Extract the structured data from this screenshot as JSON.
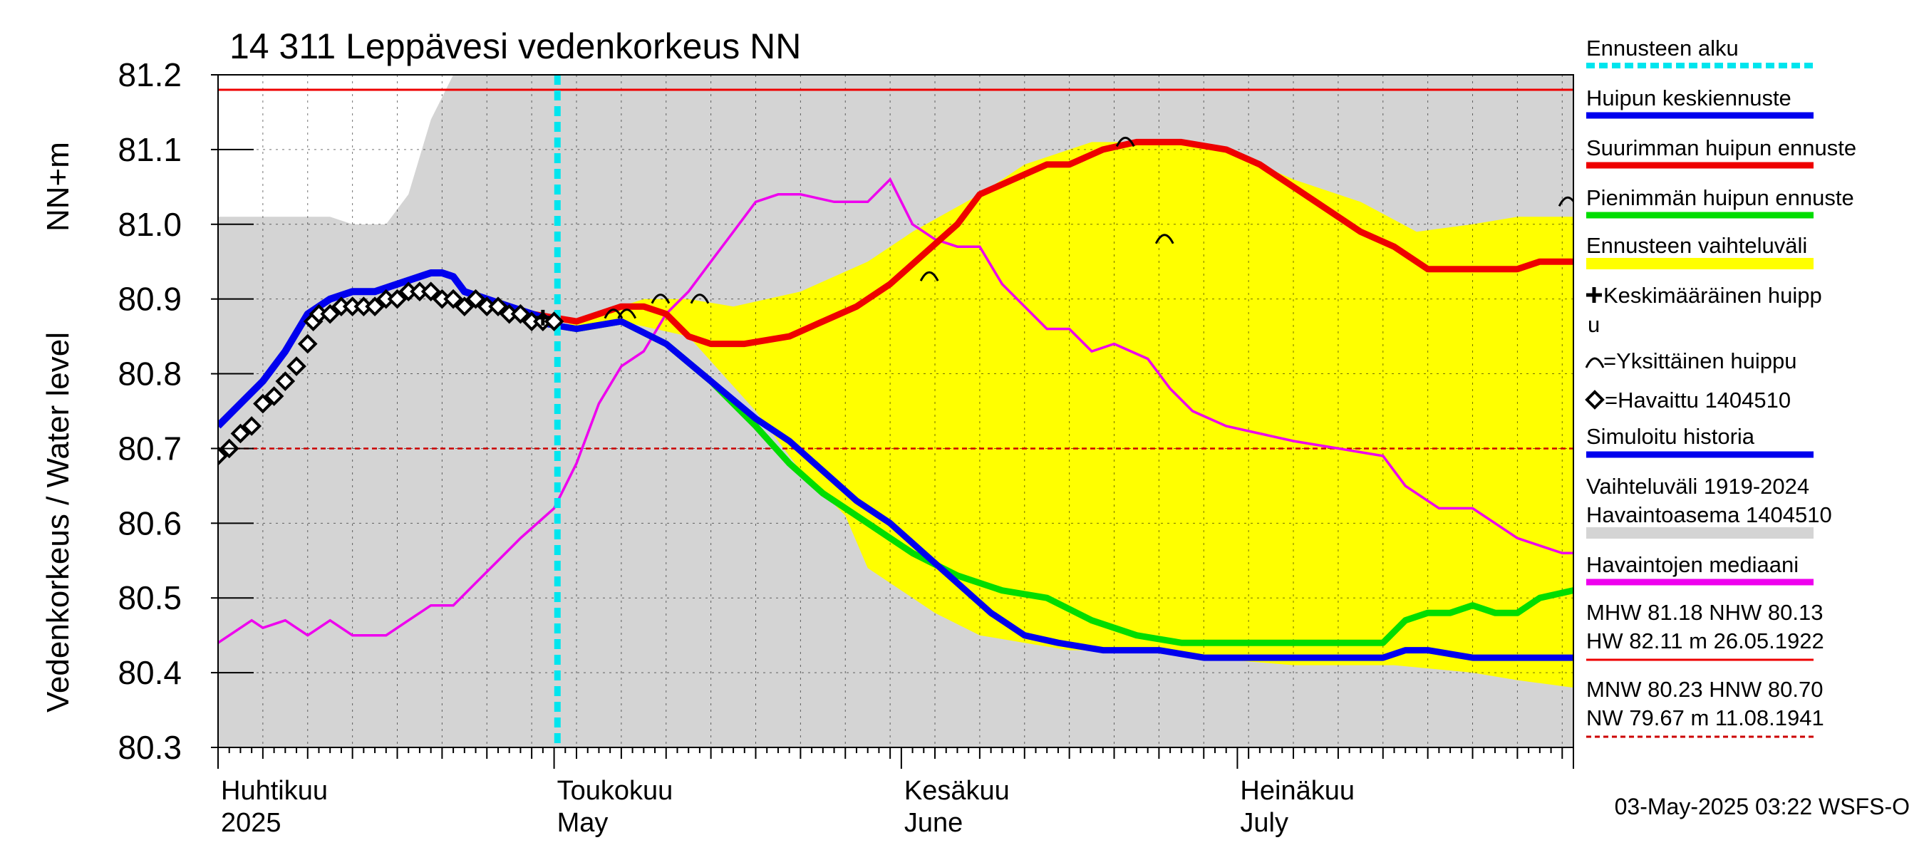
{
  "chart_data": {
    "type": "line",
    "title": "14 311 Leppävesi vedenkorkeus NN",
    "ylabel": "Vedenkorkeus / Water level",
    "yunit": "NN+m",
    "ylim": [
      80.3,
      81.2
    ],
    "yticks": [
      "80.3",
      "80.4",
      "80.5",
      "80.6",
      "80.7",
      "80.8",
      "80.9",
      "81.0",
      "81.1",
      "81.2"
    ],
    "x_range_days": [
      0,
      121
    ],
    "month_labels": [
      {
        "fi": "Huhtikuu",
        "en": "2025",
        "day": 0
      },
      {
        "fi": "Toukokuu",
        "en": "May",
        "day": 30
      },
      {
        "fi": "Kesäkuu",
        "en": "June",
        "day": 61
      },
      {
        "fi": "Heinäkuu",
        "en": "July",
        "day": 91
      }
    ],
    "month_ticks": [
      0,
      30,
      61,
      91,
      121
    ],
    "forecast_start_day": 30.3,
    "reference_lines": {
      "MHW": 81.18,
      "HNW": 80.7
    },
    "legend": [
      {
        "label": "Ennusteen alku",
        "color": "#00e5ee",
        "style": "dotted"
      },
      {
        "label": "Huipun keskiennuste",
        "color": "#0000ee",
        "style": "line"
      },
      {
        "label": "Suurimman huipun ennuste",
        "color": "#ee0000",
        "style": "line"
      },
      {
        "label": "Pienimmän huipun ennuste",
        "color": "#00dd00",
        "style": "line"
      },
      {
        "label": "Ennusteen vaihteluväli",
        "color": "#ffff00",
        "style": "band"
      },
      {
        "label": "=Keskimääräinen huippu",
        "color": "#000000",
        "style": "plus"
      },
      {
        "label": "=Yksittäinen huippu",
        "color": "#000000",
        "style": "arc"
      },
      {
        "label": "=Havaittu 1404510",
        "color": "#000000",
        "style": "diamond"
      },
      {
        "label": "Simuloitu historia",
        "color": "#0000ee",
        "style": "line"
      },
      {
        "label": "Vaihteluväli 1919-2024",
        "label2": "Havaintoasema 1404510",
        "color": "#d4d4d4",
        "style": "band"
      },
      {
        "label": "Havaintojen mediaani",
        "color": "#ee00ee",
        "style": "line"
      }
    ],
    "stats_high": {
      "line1": "MHW  81.18 NHW  80.13",
      "line2": "HW  82.11 m 26.05.1922"
    },
    "stats_low": {
      "line1": "MNW  80.23 HNW  80.70",
      "line2": "NW  79.67 m 11.08.1941"
    },
    "timestamp": "03-May-2025 03:22 WSFS-O",
    "series": {
      "history_band_upper": [
        [
          0,
          81.01
        ],
        [
          10,
          81.01
        ],
        [
          12,
          81.0
        ],
        [
          15,
          81.0
        ],
        [
          17,
          81.04
        ],
        [
          18,
          81.09
        ],
        [
          19,
          81.14
        ],
        [
          20,
          81.17
        ],
        [
          21,
          81.2
        ],
        [
          121,
          81.2
        ]
      ],
      "history_band_lower": [
        [
          0,
          80.3
        ],
        [
          121,
          80.3
        ]
      ],
      "forecast_band_upper": [
        [
          30,
          80.86
        ],
        [
          38,
          80.9
        ],
        [
          42,
          80.9
        ],
        [
          46,
          80.89
        ],
        [
          52,
          80.91
        ],
        [
          58,
          80.95
        ],
        [
          62,
          80.99
        ],
        [
          68,
          81.04
        ],
        [
          72,
          81.08
        ],
        [
          78,
          81.11
        ],
        [
          84,
          81.11
        ],
        [
          90,
          81.1
        ],
        [
          96,
          81.06
        ],
        [
          102,
          81.03
        ],
        [
          107,
          80.99
        ],
        [
          112,
          81.0
        ],
        [
          116,
          81.01
        ],
        [
          121,
          81.01
        ]
      ],
      "forecast_band_lower": [
        [
          30,
          80.86
        ],
        [
          36,
          80.87
        ],
        [
          42,
          80.85
        ],
        [
          48,
          80.75
        ],
        [
          52,
          80.67
        ],
        [
          56,
          80.61
        ],
        [
          58,
          80.54
        ],
        [
          61,
          80.51
        ],
        [
          64,
          80.48
        ],
        [
          68,
          80.45
        ],
        [
          72,
          80.44
        ],
        [
          76,
          80.43
        ],
        [
          82,
          80.43
        ],
        [
          88,
          80.42
        ],
        [
          96,
          80.41
        ],
        [
          105,
          80.41
        ],
        [
          112,
          80.4
        ],
        [
          116,
          80.39
        ],
        [
          121,
          80.38
        ]
      ],
      "median": [
        [
          0,
          80.44
        ],
        [
          3,
          80.47
        ],
        [
          4,
          80.46
        ],
        [
          6,
          80.47
        ],
        [
          8,
          80.45
        ],
        [
          10,
          80.47
        ],
        [
          12,
          80.45
        ],
        [
          15,
          80.45
        ],
        [
          17,
          80.47
        ],
        [
          19,
          80.49
        ],
        [
          21,
          80.49
        ],
        [
          23,
          80.52
        ],
        [
          25,
          80.55
        ],
        [
          27,
          80.58
        ],
        [
          30,
          80.62
        ],
        [
          32,
          80.68
        ],
        [
          34,
          80.76
        ],
        [
          36,
          80.81
        ],
        [
          38,
          80.83
        ],
        [
          40,
          80.88
        ],
        [
          42,
          80.91
        ],
        [
          44,
          80.95
        ],
        [
          46,
          80.99
        ],
        [
          48,
          81.03
        ],
        [
          50,
          81.04
        ],
        [
          52,
          81.04
        ],
        [
          55,
          81.03
        ],
        [
          58,
          81.03
        ],
        [
          60,
          81.06
        ],
        [
          62,
          81.0
        ],
        [
          64,
          80.98
        ],
        [
          66,
          80.97
        ],
        [
          68,
          80.97
        ],
        [
          70,
          80.92
        ],
        [
          72,
          80.89
        ],
        [
          74,
          80.86
        ],
        [
          76,
          80.86
        ],
        [
          78,
          80.83
        ],
        [
          80,
          80.84
        ],
        [
          83,
          80.82
        ],
        [
          85,
          80.78
        ],
        [
          87,
          80.75
        ],
        [
          90,
          80.73
        ],
        [
          93,
          80.72
        ],
        [
          96,
          80.71
        ],
        [
          100,
          80.7
        ],
        [
          104,
          80.69
        ],
        [
          106,
          80.65
        ],
        [
          109,
          80.62
        ],
        [
          112,
          80.62
        ],
        [
          114,
          80.6
        ],
        [
          116,
          80.58
        ],
        [
          118,
          80.57
        ],
        [
          120,
          80.56
        ],
        [
          121,
          80.56
        ]
      ],
      "max_peak": [
        [
          28,
          80.88
        ],
        [
          32,
          80.87
        ],
        [
          36,
          80.89
        ],
        [
          38,
          80.89
        ],
        [
          40,
          80.88
        ],
        [
          42,
          80.85
        ],
        [
          44,
          80.84
        ],
        [
          47,
          80.84
        ],
        [
          51,
          80.85
        ],
        [
          54,
          80.87
        ],
        [
          57,
          80.89
        ],
        [
          60,
          80.92
        ],
        [
          63,
          80.96
        ],
        [
          66,
          81.0
        ],
        [
          68,
          81.04
        ],
        [
          71,
          81.06
        ],
        [
          74,
          81.08
        ],
        [
          76,
          81.08
        ],
        [
          79,
          81.1
        ],
        [
          82,
          81.11
        ],
        [
          86,
          81.11
        ],
        [
          90,
          81.1
        ],
        [
          93,
          81.08
        ],
        [
          96,
          81.05
        ],
        [
          99,
          81.02
        ],
        [
          102,
          80.99
        ],
        [
          105,
          80.97
        ],
        [
          108,
          80.94
        ],
        [
          110,
          80.94
        ],
        [
          112,
          80.94
        ],
        [
          116,
          80.94
        ],
        [
          118,
          80.95
        ],
        [
          121,
          80.95
        ]
      ],
      "min_peak": [
        [
          28,
          80.87
        ],
        [
          32,
          80.86
        ],
        [
          36,
          80.87
        ],
        [
          40,
          80.84
        ],
        [
          44,
          80.79
        ],
        [
          48,
          80.73
        ],
        [
          51,
          80.68
        ],
        [
          54,
          80.64
        ],
        [
          58,
          80.6
        ],
        [
          62,
          80.56
        ],
        [
          66,
          80.53
        ],
        [
          70,
          80.51
        ],
        [
          74,
          80.5
        ],
        [
          78,
          80.47
        ],
        [
          82,
          80.45
        ],
        [
          86,
          80.44
        ],
        [
          90,
          80.44
        ],
        [
          95,
          80.44
        ],
        [
          100,
          80.44
        ],
        [
          104,
          80.44
        ],
        [
          106,
          80.47
        ],
        [
          108,
          80.48
        ],
        [
          110,
          80.48
        ],
        [
          112,
          80.49
        ],
        [
          114,
          80.48
        ],
        [
          116,
          80.48
        ],
        [
          118,
          80.5
        ],
        [
          121,
          80.51
        ]
      ],
      "mean_peak": [
        [
          28,
          80.87
        ],
        [
          32,
          80.86
        ],
        [
          36,
          80.87
        ],
        [
          40,
          80.84
        ],
        [
          44,
          80.79
        ],
        [
          48,
          80.74
        ],
        [
          51,
          80.71
        ],
        [
          54,
          80.67
        ],
        [
          57,
          80.63
        ],
        [
          60,
          80.6
        ],
        [
          63,
          80.56
        ],
        [
          66,
          80.52
        ],
        [
          69,
          80.48
        ],
        [
          72,
          80.45
        ],
        [
          75,
          80.44
        ],
        [
          79,
          80.43
        ],
        [
          84,
          80.43
        ],
        [
          88,
          80.42
        ],
        [
          94,
          80.42
        ],
        [
          100,
          80.42
        ],
        [
          104,
          80.42
        ],
        [
          106,
          80.43
        ],
        [
          108,
          80.43
        ],
        [
          112,
          80.42
        ],
        [
          116,
          80.42
        ],
        [
          121,
          80.42
        ]
      ],
      "simulated": [
        [
          0,
          80.73
        ],
        [
          2,
          80.76
        ],
        [
          4,
          80.79
        ],
        [
          6,
          80.83
        ],
        [
          8,
          80.88
        ],
        [
          10,
          80.9
        ],
        [
          12,
          80.91
        ],
        [
          14,
          80.91
        ],
        [
          16,
          80.92
        ],
        [
          18,
          80.93
        ],
        [
          19,
          80.935
        ],
        [
          20,
          80.935
        ],
        [
          21,
          80.93
        ],
        [
          22,
          80.91
        ],
        [
          24,
          80.9
        ],
        [
          26,
          80.89
        ],
        [
          28,
          80.88
        ],
        [
          30,
          80.87
        ]
      ],
      "observed": [
        [
          0,
          80.69
        ],
        [
          1,
          80.7
        ],
        [
          2,
          80.72
        ],
        [
          3,
          80.73
        ],
        [
          4,
          80.76
        ],
        [
          5,
          80.77
        ],
        [
          6,
          80.79
        ],
        [
          7,
          80.81
        ],
        [
          8,
          80.84
        ],
        [
          8.5,
          80.87
        ],
        [
          9,
          80.88
        ],
        [
          10,
          80.88
        ],
        [
          11,
          80.89
        ],
        [
          12,
          80.89
        ],
        [
          13,
          80.89
        ],
        [
          14,
          80.89
        ],
        [
          15,
          80.9
        ],
        [
          16,
          80.9
        ],
        [
          17,
          80.91
        ],
        [
          18,
          80.91
        ],
        [
          19,
          80.91
        ],
        [
          20,
          80.9
        ],
        [
          21,
          80.9
        ],
        [
          22,
          80.89
        ],
        [
          23,
          80.9
        ],
        [
          24,
          80.89
        ],
        [
          25,
          80.89
        ],
        [
          26,
          80.88
        ],
        [
          27,
          80.88
        ],
        [
          28,
          80.87
        ],
        [
          29,
          80.87
        ],
        [
          30,
          80.87
        ]
      ],
      "single_peaks": [
        [
          35.3,
          80.88
        ],
        [
          36.5,
          80.88
        ],
        [
          39.5,
          80.9
        ],
        [
          43,
          80.9
        ],
        [
          63.5,
          80.93
        ],
        [
          81,
          81.11
        ],
        [
          84.5,
          80.98
        ],
        [
          120.5,
          81.03
        ]
      ],
      "mean_peak_marker": [
        [
          29,
          80.875
        ]
      ]
    }
  }
}
